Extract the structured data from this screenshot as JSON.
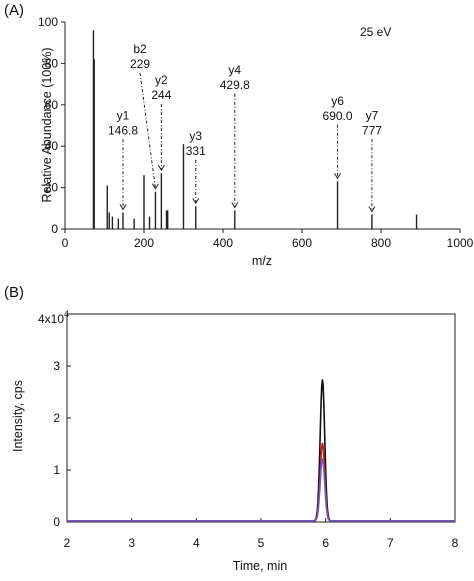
{
  "panels": {
    "a_label": "(A)",
    "b_label": "(B)"
  },
  "chart_data": [
    {
      "type": "bar",
      "panel": "A",
      "annotation": "25 eV",
      "xlabel": "m/z",
      "ylabel": "Relative Abundance (100%)",
      "xlim": [
        0,
        1000
      ],
      "ylim": [
        0,
        100
      ],
      "xticks": [
        0,
        200,
        400,
        600,
        800,
        1000
      ],
      "yticks": [
        0,
        20,
        40,
        60,
        80,
        100
      ],
      "grid": false,
      "peaks": [
        {
          "mz": 72,
          "abundance": 96
        },
        {
          "mz": 74,
          "abundance": 82
        },
        {
          "mz": 107,
          "abundance": 21
        },
        {
          "mz": 112,
          "abundance": 8
        },
        {
          "mz": 120,
          "abundance": 6
        },
        {
          "mz": 135,
          "abundance": 5
        },
        {
          "mz": 146.8,
          "abundance": 8
        },
        {
          "mz": 175,
          "abundance": 5
        },
        {
          "mz": 200,
          "abundance": 26
        },
        {
          "mz": 214,
          "abundance": 6
        },
        {
          "mz": 229,
          "abundance": 18
        },
        {
          "mz": 244,
          "abundance": 27
        },
        {
          "mz": 257,
          "abundance": 9
        },
        {
          "mz": 260,
          "abundance": 9
        },
        {
          "mz": 300,
          "abundance": 41
        },
        {
          "mz": 331,
          "abundance": 11
        },
        {
          "mz": 429.8,
          "abundance": 9
        },
        {
          "mz": 690.0,
          "abundance": 23
        },
        {
          "mz": 777,
          "abundance": 7
        },
        {
          "mz": 890,
          "abundance": 7
        }
      ],
      "fragments": [
        {
          "name": "y1",
          "value": "146.8",
          "mz": 146.8,
          "label_mz": 146.8,
          "label_y": 53
        },
        {
          "name": "b2",
          "value": "229",
          "mz": 229,
          "label_mz": 190,
          "label_y": 85
        },
        {
          "name": "y2",
          "value": "244",
          "mz": 244,
          "label_mz": 244,
          "label_y": 70
        },
        {
          "name": "y3",
          "value": "331",
          "mz": 331,
          "label_mz": 331,
          "label_y": 43
        },
        {
          "name": "y4",
          "value": "429.8",
          "mz": 429.8,
          "label_mz": 429.8,
          "label_y": 75
        },
        {
          "name": "y6",
          "value": "690.0",
          "mz": 690.0,
          "label_mz": 690.0,
          "label_y": 60
        },
        {
          "name": "y7",
          "value": "777",
          "mz": 777,
          "label_mz": 777,
          "label_y": 53
        }
      ]
    },
    {
      "type": "line",
      "panel": "B",
      "xlabel": "Time, min",
      "ylabel": "Intensity, cps",
      "xlim": [
        2,
        8
      ],
      "ylim": [
        0,
        4
      ],
      "xticks": [
        2,
        3,
        4,
        5,
        6,
        7,
        8
      ],
      "yticks": [
        0,
        1,
        2,
        3
      ],
      "y_multiplier": "4x10",
      "y_multiplier_exp": "4",
      "grid": false,
      "series": [
        {
          "color": "#111111",
          "peak_time": 5.95,
          "peak_height": 2.72,
          "baseline": 0.02,
          "width": 0.035
        },
        {
          "color": "#d11a1a",
          "peak_time": 5.95,
          "peak_height": 1.5,
          "baseline": 0.02,
          "width": 0.035
        },
        {
          "color": "#6a5acd",
          "peak_time": 5.95,
          "peak_height": 1.2,
          "baseline": 0.02,
          "width": 0.035
        }
      ]
    }
  ]
}
